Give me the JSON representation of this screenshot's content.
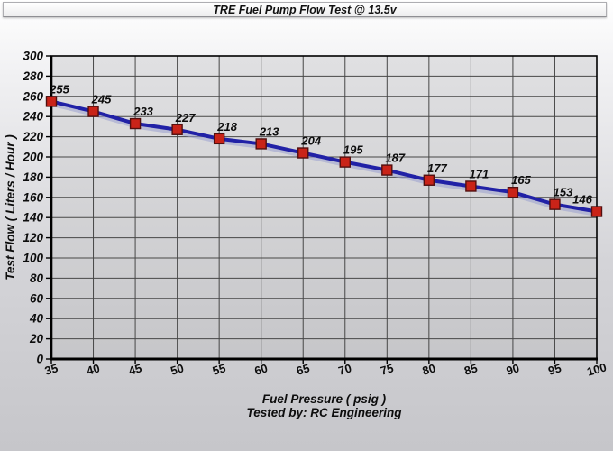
{
  "chart_data": {
    "type": "line",
    "title": "TRE Fuel Pump Flow Test @ 13.5v",
    "xlabel": "Fuel Pressure ( psig )",
    "ylabel": "Test Flow ( Liters / Hour )",
    "footer": "Tested by: RC Engineering",
    "x": [
      35,
      40,
      45,
      50,
      55,
      60,
      65,
      70,
      75,
      80,
      85,
      90,
      95,
      100
    ],
    "values": [
      255,
      245,
      233,
      227,
      218,
      213,
      204,
      195,
      187,
      177,
      171,
      165,
      153,
      146
    ],
    "series_name": "Test Flow",
    "xlim": [
      35,
      100
    ],
    "ylim": [
      0,
      300
    ],
    "x_tick_step": 5,
    "y_tick_step": 20,
    "x_tick_labels": [
      "35",
      "40",
      "45",
      "50",
      "55",
      "60",
      "65",
      "70",
      "75",
      "80",
      "85",
      "90",
      "95",
      "100"
    ],
    "y_tick_labels": [
      "0",
      "20",
      "40",
      "60",
      "80",
      "100",
      "120",
      "140",
      "160",
      "180",
      "200",
      "220",
      "240",
      "260",
      "280",
      "300"
    ],
    "grid": true,
    "data_labels": true,
    "legend": "none",
    "line_color": "#2121a6",
    "line_shadow_color": "#9aa0d0",
    "marker_color": "#c92318",
    "marker_border_color": "#520f0f",
    "grid_color": "#474747",
    "axis_color": "#000000",
    "plot_bg_top": "#e0e0e2",
    "plot_bg_bottom": "#c6c6c9"
  }
}
